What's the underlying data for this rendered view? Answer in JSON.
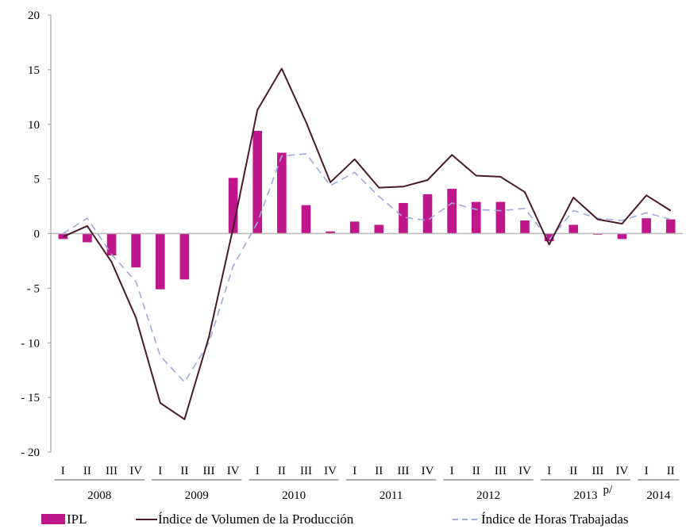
{
  "chart_data": {
    "type": "bar",
    "title": "",
    "xlabel": "",
    "ylabel": "",
    "ylim": [
      -20,
      20
    ],
    "yticks": [
      20,
      15,
      10,
      5,
      0,
      -5,
      -10,
      -15,
      -20
    ],
    "ytick_labels": [
      "20",
      "15",
      "10",
      "5",
      "0",
      "- 5",
      "- 10",
      "- 15",
      "- 20"
    ],
    "categories": [
      "I",
      "II",
      "III",
      "IV",
      "I",
      "II",
      "III",
      "IV",
      "I",
      "II",
      "III",
      "IV",
      "I",
      "II",
      "III",
      "IV",
      "I",
      "II",
      "III",
      "IV",
      "I",
      "II",
      "III",
      "IV",
      "I",
      "II"
    ],
    "years": [
      {
        "label": "2008",
        "superscript": "",
        "quarters": 4
      },
      {
        "label": "2009",
        "superscript": "",
        "quarters": 4
      },
      {
        "label": "2010",
        "superscript": "",
        "quarters": 4
      },
      {
        "label": "2011",
        "superscript": "",
        "quarters": 4
      },
      {
        "label": "2012",
        "superscript": "",
        "quarters": 4
      },
      {
        "label": "2013",
        "superscript": "p/",
        "quarters": 4
      },
      {
        "label": "2014",
        "superscript": "",
        "quarters": 2
      }
    ],
    "grid": false,
    "legend_position": "bottom",
    "series": [
      {
        "name": "IPL",
        "type": "bar",
        "color": "#c0168c",
        "values": [
          -0.5,
          -0.8,
          -2.0,
          -3.1,
          -5.1,
          -4.2,
          null,
          5.1,
          9.4,
          7.4,
          2.6,
          0.2,
          1.1,
          0.8,
          2.8,
          3.6,
          4.1,
          2.9,
          2.9,
          1.2,
          -0.7,
          0.8,
          -0.1,
          -0.5,
          1.4,
          1.3
        ]
      },
      {
        "name": "Índice de Volumen de la Producción",
        "type": "line",
        "color": "#4a1a2a",
        "values": [
          -0.3,
          0.7,
          -2.6,
          -7.7,
          -15.5,
          -17.0,
          -9.5,
          0.5,
          11.3,
          15.1,
          10.2,
          4.7,
          6.8,
          4.2,
          4.3,
          4.9,
          7.2,
          5.3,
          5.2,
          3.8,
          -1.0,
          3.3,
          1.3,
          0.9,
          3.5,
          2.1
        ]
      },
      {
        "name": "Índice de Horas Trabajadas",
        "type": "line",
        "dash": true,
        "color": "#9fa8da",
        "values": [
          0.0,
          1.4,
          -1.9,
          -4.4,
          -11.2,
          -13.6,
          -10.0,
          -3.0,
          1.0,
          7.1,
          7.3,
          4.4,
          5.6,
          3.4,
          1.5,
          1.2,
          2.8,
          2.2,
          2.1,
          2.3,
          -0.6,
          2.1,
          1.4,
          1.2,
          1.9,
          1.3
        ]
      }
    ]
  }
}
